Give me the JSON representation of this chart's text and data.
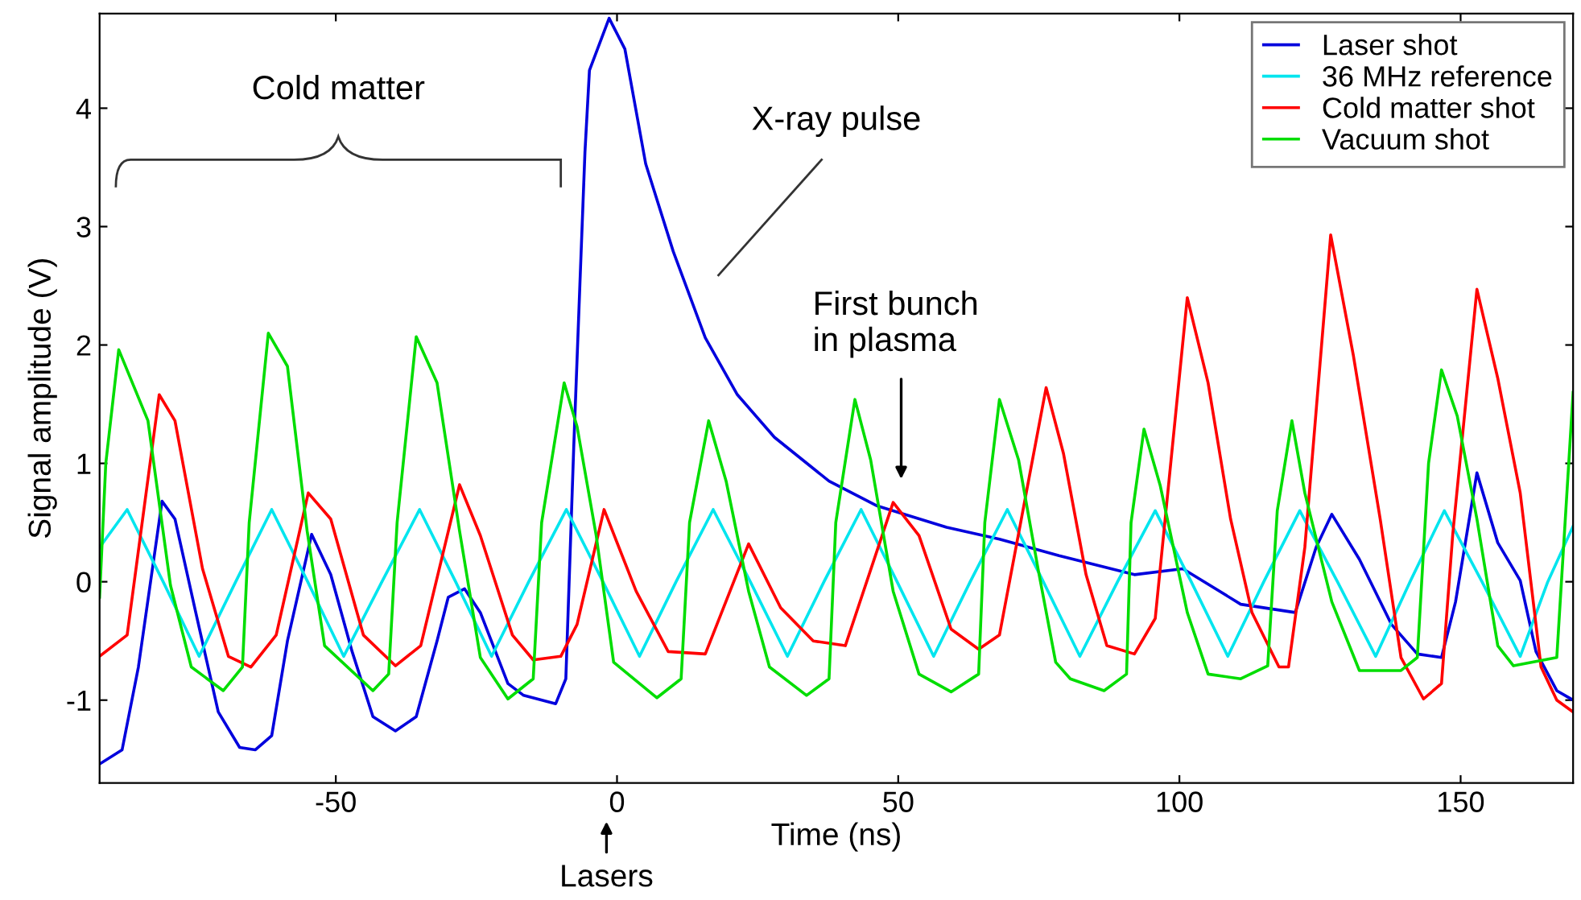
{
  "chart_data": {
    "type": "line",
    "xlabel": "Time (ns)",
    "ylabel": "Signal amplitude (V)",
    "xlim": [
      -92,
      170
    ],
    "ylim": [
      -1.7,
      4.8
    ],
    "xticks": [
      -50,
      0,
      50,
      100,
      150
    ],
    "yticks": [
      -1,
      0,
      1,
      2,
      3,
      4
    ],
    "grid": false,
    "legend": "top right",
    "marker": "none",
    "line_style": "solid",
    "series": [
      {
        "name": "Laser shot",
        "color": "#0000dd",
        "x": [
          -92,
          -88,
          -85.1,
          -80.9,
          -78.6,
          -74.9,
          -70.9,
          -67.1,
          -64.3,
          -61.4,
          -58.6,
          -54.3,
          -50.9,
          -47.1,
          -43.4,
          -39.4,
          -35.7,
          -32,
          -30,
          -27.1,
          -24.3,
          -19.4,
          -16.6,
          -10.9,
          -9.1,
          -7.7,
          -6.6,
          -5.7,
          -4.9,
          -1.4,
          1.4,
          5.1,
          10,
          15.7,
          21.4,
          28,
          37.7,
          46.3,
          58.6,
          68,
          78.6,
          92,
          100.6,
          110.9,
          120.6,
          124.3,
          127.1,
          132,
          137.7,
          142.3,
          146.6,
          149.1,
          152.9,
          156.6,
          160.6,
          163.4,
          167.1,
          170
        ],
        "values": [
          -1.54,
          -1.42,
          -0.72,
          0.68,
          0.53,
          -0.26,
          -1.1,
          -1.4,
          -1.42,
          -1.3,
          -0.5,
          0.4,
          0.06,
          -0.59,
          -1.14,
          -1.26,
          -1.14,
          -0.5,
          -0.13,
          -0.06,
          -0.26,
          -0.86,
          -0.96,
          -1.03,
          -0.82,
          1.13,
          2.51,
          3.63,
          4.32,
          4.76,
          4.5,
          3.53,
          2.79,
          2.06,
          1.58,
          1.22,
          0.85,
          0.64,
          0.46,
          0.36,
          0.22,
          0.06,
          0.11,
          -0.19,
          -0.26,
          0.29,
          0.57,
          0.19,
          -0.36,
          -0.61,
          -0.64,
          -0.17,
          0.92,
          0.33,
          0.01,
          -0.59,
          -0.92,
          -1
        ]
      },
      {
        "name": "36 MHz reference",
        "color": "#00e5ee",
        "x": [
          -92,
          -87.1,
          -80.7,
          -74.3,
          -67.8,
          -61.4,
          -55,
          -48.6,
          -41.8,
          -35.1,
          -28.7,
          -22.3,
          -15.7,
          -9,
          -2.5,
          4,
          10.5,
          17.1,
          23.7,
          30.3,
          36.8,
          43.4,
          49.8,
          56.3,
          62.8,
          69.4,
          75.8,
          82.3,
          89,
          95.7,
          102.1,
          108.6,
          115,
          121.4,
          128.1,
          134.9,
          141,
          147.1,
          153.8,
          160.6,
          165.5,
          170
        ],
        "values": [
          0.29,
          0.61,
          0,
          -0.63,
          0,
          0.61,
          0,
          -0.63,
          0,
          0.61,
          0,
          -0.63,
          0,
          0.61,
          0,
          -0.63,
          0,
          0.61,
          0,
          -0.63,
          0,
          0.61,
          0,
          -0.63,
          0,
          0.61,
          0,
          -0.63,
          0,
          0.6,
          0,
          -0.63,
          0,
          0.6,
          0,
          -0.63,
          0,
          0.6,
          0,
          -0.63,
          0,
          0.47
        ]
      },
      {
        "name": "Cold matter shot",
        "color": "#ff0000",
        "x": [
          -92,
          -87.1,
          -81.4,
          -78.6,
          -73.7,
          -69.1,
          -65.1,
          -60.6,
          -54.9,
          -50.9,
          -45.1,
          -39.4,
          -34.9,
          -28,
          -24.3,
          -18.6,
          -14.9,
          -10,
          -7.1,
          -2.3,
          3.4,
          9.1,
          15.7,
          23.4,
          29.1,
          34.9,
          40.6,
          49.1,
          53.7,
          59.4,
          64.3,
          68,
          76.3,
          79.4,
          83.4,
          87.1,
          92,
          95.7,
          101.4,
          105.1,
          109.1,
          112.9,
          117.7,
          119.4,
          122.3,
          126.9,
          130.9,
          135.7,
          139.4,
          143.4,
          146.6,
          148.6,
          152.9,
          156.6,
          160.6,
          164.3,
          167.1,
          170
        ],
        "values": [
          -0.63,
          -0.45,
          1.58,
          1.36,
          0.11,
          -0.63,
          -0.72,
          -0.45,
          0.75,
          0.53,
          -0.45,
          -0.71,
          -0.54,
          0.82,
          0.39,
          -0.45,
          -0.66,
          -0.63,
          -0.36,
          0.61,
          -0.08,
          -0.59,
          -0.61,
          0.32,
          -0.22,
          -0.5,
          -0.54,
          0.67,
          0.39,
          -0.4,
          -0.57,
          -0.45,
          1.64,
          1.08,
          0.06,
          -0.54,
          -0.61,
          -0.31,
          2.4,
          1.68,
          0.53,
          -0.26,
          -0.72,
          -0.72,
          0.29,
          2.93,
          1.92,
          0.53,
          -0.64,
          -0.99,
          -0.86,
          0.4,
          2.47,
          1.72,
          0.75,
          -0.72,
          -1,
          -1.1
        ]
      },
      {
        "name": "Vacuum shot",
        "color": "#00dd00",
        "x": [
          -92,
          -90.9,
          -88.6,
          -83.4,
          -79.4,
          -75.7,
          -70,
          -66.6,
          -65.4,
          -62,
          -58.6,
          -55.1,
          -52,
          -43.4,
          -40.6,
          -39.1,
          -35.7,
          -32,
          -28,
          -24.3,
          -19.4,
          -14.9,
          -13.4,
          -9.4,
          -7.1,
          -3.7,
          -0.6,
          7.1,
          11.4,
          12.9,
          16.3,
          19.4,
          23.4,
          27.1,
          33.7,
          37.7,
          38.9,
          42.3,
          45.1,
          49.1,
          53.7,
          59.4,
          64.3,
          65.4,
          68,
          71.4,
          74.9,
          78,
          80.6,
          86.6,
          90.6,
          91.4,
          93.7,
          96.6,
          101.4,
          105.1,
          110.9,
          115.7,
          117.4,
          120,
          122.3,
          127.1,
          132,
          139.4,
          142.3,
          144.3,
          146.6,
          149.4,
          152.9,
          156.6,
          159.4,
          167.1,
          170
        ],
        "values": [
          -0.13,
          1.0,
          1.96,
          1.36,
          -0.03,
          -0.72,
          -0.92,
          -0.72,
          0.5,
          2.1,
          1.82,
          0.43,
          -0.54,
          -0.92,
          -0.78,
          0.5,
          2.07,
          1.68,
          0.43,
          -0.64,
          -0.99,
          -0.82,
          0.5,
          1.68,
          1.31,
          0.39,
          -0.68,
          -0.98,
          -0.82,
          0.5,
          1.36,
          0.85,
          -0.08,
          -0.72,
          -0.96,
          -0.82,
          0.5,
          1.54,
          1.03,
          -0.08,
          -0.78,
          -0.93,
          -0.78,
          0.5,
          1.54,
          1.03,
          0.1,
          -0.68,
          -0.82,
          -0.92,
          -0.78,
          0.5,
          1.29,
          0.81,
          -0.26,
          -0.78,
          -0.82,
          -0.71,
          0.6,
          1.36,
          0.75,
          -0.17,
          -0.75,
          -0.75,
          -0.64,
          1.0,
          1.79,
          1.4,
          0.53,
          -0.54,
          -0.71,
          -0.64,
          1.6
        ]
      }
    ],
    "annotations": [
      "Cold matter",
      "X-ray pulse",
      "First bunch\nin plasma",
      "Lasers"
    ]
  }
}
